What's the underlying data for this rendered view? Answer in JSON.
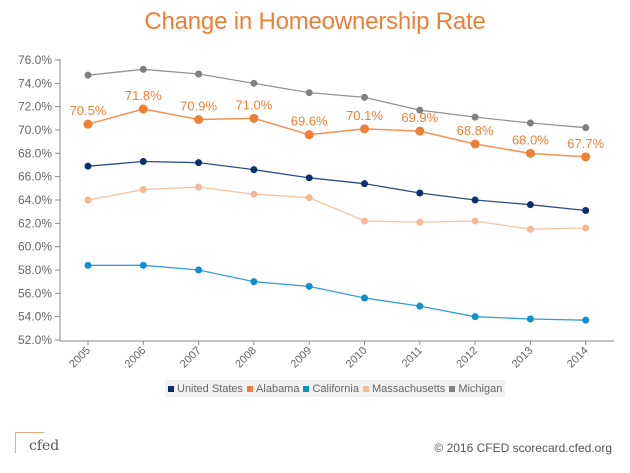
{
  "chart_data": {
    "type": "line",
    "title": "Change in Homeownership Rate",
    "xlabel": "",
    "ylabel": "",
    "x": [
      "2005",
      "2006",
      "2007",
      "2008",
      "2009",
      "2010",
      "2011",
      "2012",
      "2013",
      "2014"
    ],
    "ylim": [
      52.0,
      76.0
    ],
    "yticks": [
      "52.0%",
      "54.0%",
      "56.0%",
      "58.0%",
      "60.0%",
      "62.0%",
      "64.0%",
      "66.0%",
      "68.0%",
      "70.0%",
      "72.0%",
      "74.0%",
      "76.0%"
    ],
    "ytick_values": [
      52,
      54,
      56,
      58,
      60,
      62,
      64,
      66,
      68,
      70,
      72,
      74,
      76
    ],
    "grid": false,
    "legend_position": "bottom",
    "series": [
      {
        "name": "United States",
        "color": "#0b2f6e",
        "values": [
          66.9,
          67.3,
          67.2,
          66.6,
          65.9,
          65.4,
          64.6,
          64.0,
          63.6,
          63.1
        ],
        "labels": []
      },
      {
        "name": "Alabama",
        "color": "#f07f36",
        "values": [
          70.5,
          71.8,
          70.9,
          71.0,
          69.6,
          70.1,
          69.9,
          68.8,
          68.0,
          67.7
        ],
        "labels": [
          "70.5%",
          "71.8%",
          "70.9%",
          "71.0%",
          "69.6%",
          "70.1%",
          "69.9%",
          "68.8%",
          "68.0%",
          "67.7%"
        ]
      },
      {
        "name": "California",
        "color": "#0e8fd0",
        "values": [
          58.4,
          58.4,
          58.0,
          57.0,
          56.6,
          55.6,
          54.9,
          54.0,
          53.8,
          53.7
        ],
        "labels": []
      },
      {
        "name": "Massachusetts",
        "color": "#f5b994",
        "values": [
          64.0,
          64.9,
          65.1,
          64.5,
          64.2,
          62.2,
          62.1,
          62.2,
          61.5,
          61.6
        ],
        "labels": []
      },
      {
        "name": "Michigan",
        "color": "#808080",
        "values": [
          74.7,
          75.2,
          74.8,
          74.0,
          73.2,
          72.8,
          71.7,
          71.1,
          70.6,
          70.2
        ],
        "labels": []
      }
    ]
  },
  "footer": {
    "logo_text": "cfed",
    "copyright": "© 2016 CFED scorecard.cfed.org"
  }
}
